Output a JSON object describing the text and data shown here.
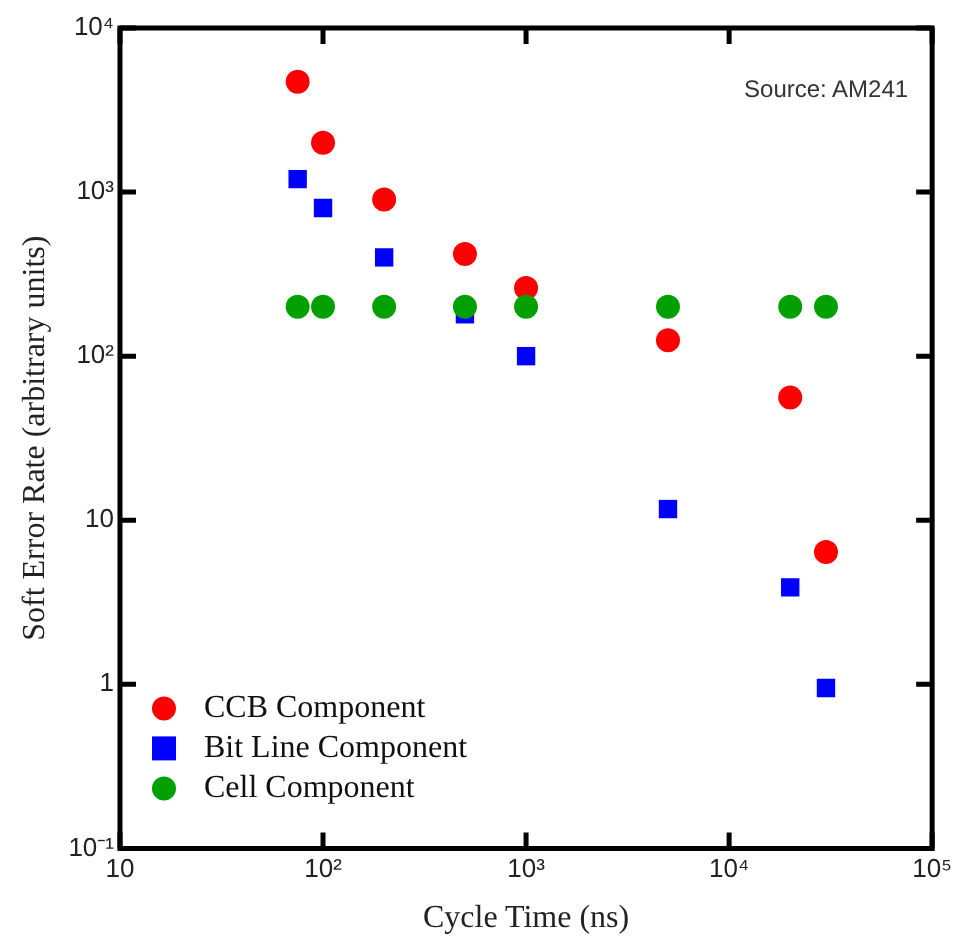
{
  "chart_data": {
    "type": "scatter",
    "xlabel": "Cycle Time (ns)",
    "ylabel": "Soft Error Rate (arbitrary units)",
    "log": "xy",
    "xlim": [
      10,
      100000
    ],
    "ylim": [
      0.1,
      10000
    ],
    "xticks": [
      10,
      {
        "value": 100,
        "label": "10²"
      },
      {
        "value": 1000,
        "label": "10³"
      },
      {
        "value": 10000,
        "label": "10⁴"
      },
      {
        "value": 100000,
        "label": "10⁵"
      }
    ],
    "yticks": [
      {
        "value": 0.1,
        "label": "10⁻¹"
      },
      1,
      10,
      {
        "value": 100,
        "label": "10²"
      },
      {
        "value": 1000,
        "label": "10³"
      },
      {
        "value": 10000,
        "label": "10⁴"
      }
    ],
    "grid": false,
    "legend": "bottom left",
    "annotations": [
      "Source: AM241"
    ],
    "x": [
      75,
      100,
      200,
      500,
      1000,
      5000,
      20000,
      30000
    ],
    "series": [
      {
        "name": "CCB Component",
        "color": "#ff0000",
        "marker": "circle",
        "values": [
          4700,
          2000,
          900,
          420,
          260,
          125,
          56,
          6.4
        ]
      },
      {
        "name": "Bit Line Component",
        "color": "#0000ff",
        "marker": "square",
        "values": [
          1200,
          800,
          400,
          180,
          100,
          11.7,
          3.9,
          0.95
        ]
      },
      {
        "name": "Cell Component",
        "color": "#00a000",
        "marker": "circle",
        "values": [
          200,
          200,
          200,
          200,
          200,
          200,
          200,
          200
        ]
      }
    ]
  }
}
